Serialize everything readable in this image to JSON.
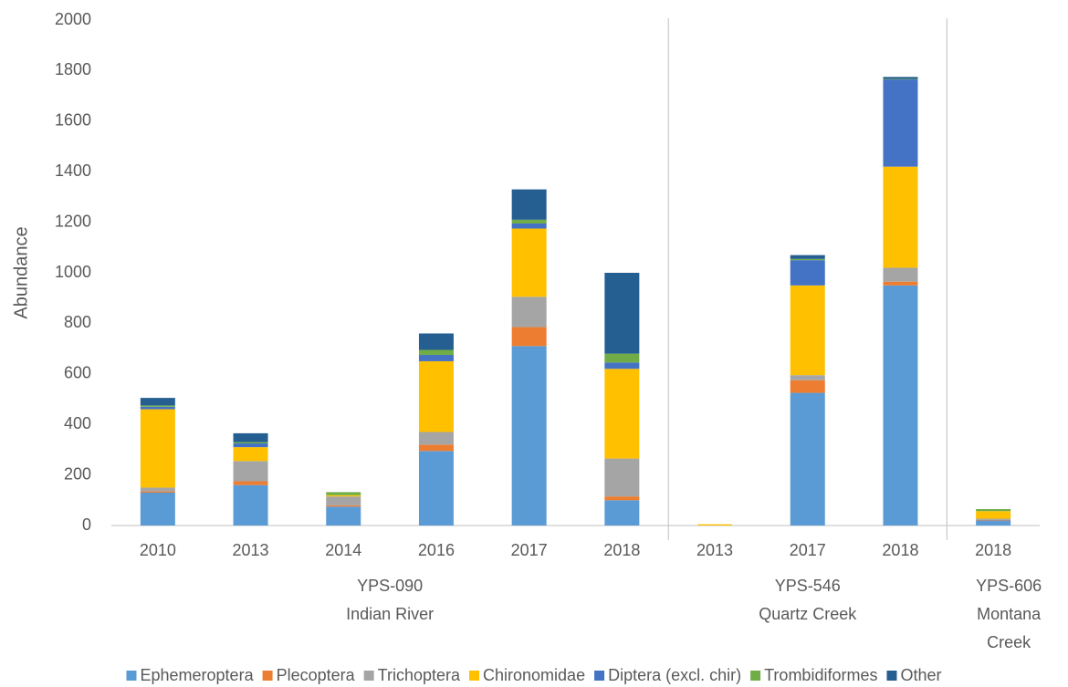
{
  "chart_data": {
    "type": "stacked_bar",
    "y_label": "Abundance",
    "groups": [
      {
        "label": [
          "YPS-090",
          "Indian River"
        ],
        "categories": [
          "2010",
          "2013",
          "2014",
          "2016",
          "2017",
          "2018"
        ]
      },
      {
        "label": [
          "YPS-546",
          "Quartz Creek"
        ],
        "categories": [
          "2013",
          "2017",
          "2018"
        ]
      },
      {
        "label": [
          "YPS-606",
          "Montana",
          "Creek"
        ],
        "categories": [
          "2018"
        ]
      }
    ],
    "series": [
      {
        "name": "Ephemeroptera",
        "color": "#5b9bd5",
        "values": [
          130,
          160,
          75,
          295,
          710,
          100,
          0,
          525,
          950,
          20
        ]
      },
      {
        "name": "Plecoptera",
        "color": "#ed7d31",
        "values": [
          5,
          15,
          5,
          25,
          75,
          15,
          0,
          50,
          15,
          2
        ]
      },
      {
        "name": "Trichoptera",
        "color": "#a5a5a5",
        "values": [
          15,
          80,
          35,
          50,
          120,
          150,
          0,
          20,
          55,
          5
        ]
      },
      {
        "name": "Chironomidae",
        "color": "#ffc000",
        "values": [
          310,
          55,
          5,
          280,
          270,
          355,
          5,
          355,
          400,
          30
        ]
      },
      {
        "name": "Diptera (excl. chir)",
        "color": "#4472c4",
        "values": [
          10,
          15,
          0,
          25,
          20,
          25,
          0,
          100,
          345,
          0
        ]
      },
      {
        "name": "Trombidiformes",
        "color": "#70ad47",
        "values": [
          5,
          5,
          12,
          20,
          15,
          35,
          0,
          5,
          2,
          8
        ]
      },
      {
        "name": "Other",
        "color": "#255e91",
        "values": [
          30,
          35,
          0,
          65,
          120,
          320,
          0,
          15,
          8,
          0
        ]
      }
    ],
    "ylim": [
      0,
      2000
    ],
    "yticks": [
      0,
      200,
      400,
      600,
      800,
      1000,
      1200,
      1400,
      1600,
      1800,
      2000
    ],
    "grid": false,
    "legend": "bottom"
  }
}
